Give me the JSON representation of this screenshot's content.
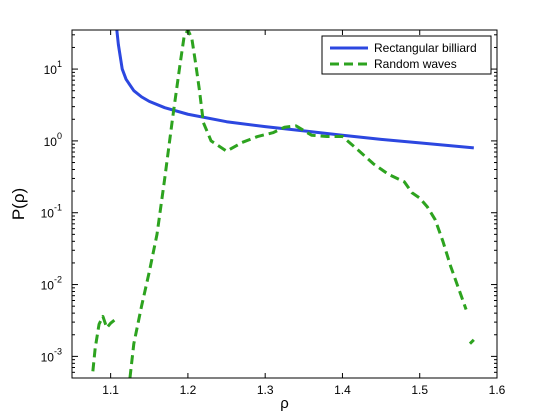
{
  "chart_data": {
    "type": "line",
    "title": "",
    "xlabel": "ρ",
    "ylabel": "P(ρ)",
    "xlim": [
      1.05,
      1.6
    ],
    "ylim": [
      0.0005,
      35
    ],
    "y_scale": "log",
    "grid": false,
    "legend_position": "top-right",
    "x_ticks": [
      1.1,
      1.2,
      1.3,
      1.4,
      1.5,
      1.6
    ],
    "x_tick_labels": [
      "1.1",
      "1.2",
      "1.3",
      "1.4",
      "1.5",
      "1.6"
    ],
    "y_ticks": [
      0.001,
      0.01,
      0.1,
      1,
      10
    ],
    "y_tick_labels": [
      {
        "base": "10",
        "exp": "-3"
      },
      {
        "base": "10",
        "exp": "-2"
      },
      {
        "base": "10",
        "exp": "-1"
      },
      {
        "base": "10",
        "exp": "0"
      },
      {
        "base": "10",
        "exp": "1"
      }
    ],
    "series": [
      {
        "name": "Rectangular billiard",
        "color": "#2c47e0",
        "style": "solid",
        "x": [
          1.108,
          1.11,
          1.115,
          1.12,
          1.13,
          1.14,
          1.15,
          1.17,
          1.2,
          1.25,
          1.3,
          1.35,
          1.4,
          1.45,
          1.5,
          1.57
        ],
        "y": [
          35,
          22,
          10,
          7.2,
          5.0,
          4.1,
          3.55,
          2.9,
          2.35,
          1.85,
          1.58,
          1.38,
          1.2,
          1.05,
          0.94,
          0.8
        ]
      },
      {
        "name": "Random waves",
        "color": "#2da31f",
        "style": "dashed",
        "segments": [
          {
            "x": [
              1.077,
              1.08,
              1.085,
              1.09,
              1.095,
              1.1,
              1.105
            ],
            "y": [
              0.00062,
              0.0013,
              0.0028,
              0.0036,
              0.0025,
              0.0029,
              0.0032
            ]
          },
          {
            "x": [
              1.125,
              1.13,
              1.14,
              1.15,
              1.16,
              1.17,
              1.18,
              1.19,
              1.195,
              1.2,
              1.205,
              1.21,
              1.215,
              1.22,
              1.23,
              1.25,
              1.27,
              1.29,
              1.31,
              1.325,
              1.34,
              1.36,
              1.38,
              1.4,
              1.42,
              1.44,
              1.46,
              1.48,
              1.49,
              1.5,
              1.51,
              1.52,
              1.53,
              1.54,
              1.55,
              1.56
            ],
            "y": [
              0.0005,
              0.0015,
              0.005,
              0.015,
              0.05,
              0.3,
              2.0,
              12,
              28,
              35,
              27,
              12,
              5,
              1.8,
              1.0,
              0.72,
              0.95,
              1.15,
              1.3,
              1.55,
              1.62,
              1.2,
              1.15,
              1.15,
              0.75,
              0.48,
              0.34,
              0.27,
              0.19,
              0.16,
              0.12,
              0.08,
              0.04,
              0.018,
              0.009,
              0.0045
            ]
          },
          {
            "x": [
              1.565,
              1.57
            ],
            "y": [
              0.0015,
              0.0017
            ]
          }
        ]
      }
    ]
  }
}
